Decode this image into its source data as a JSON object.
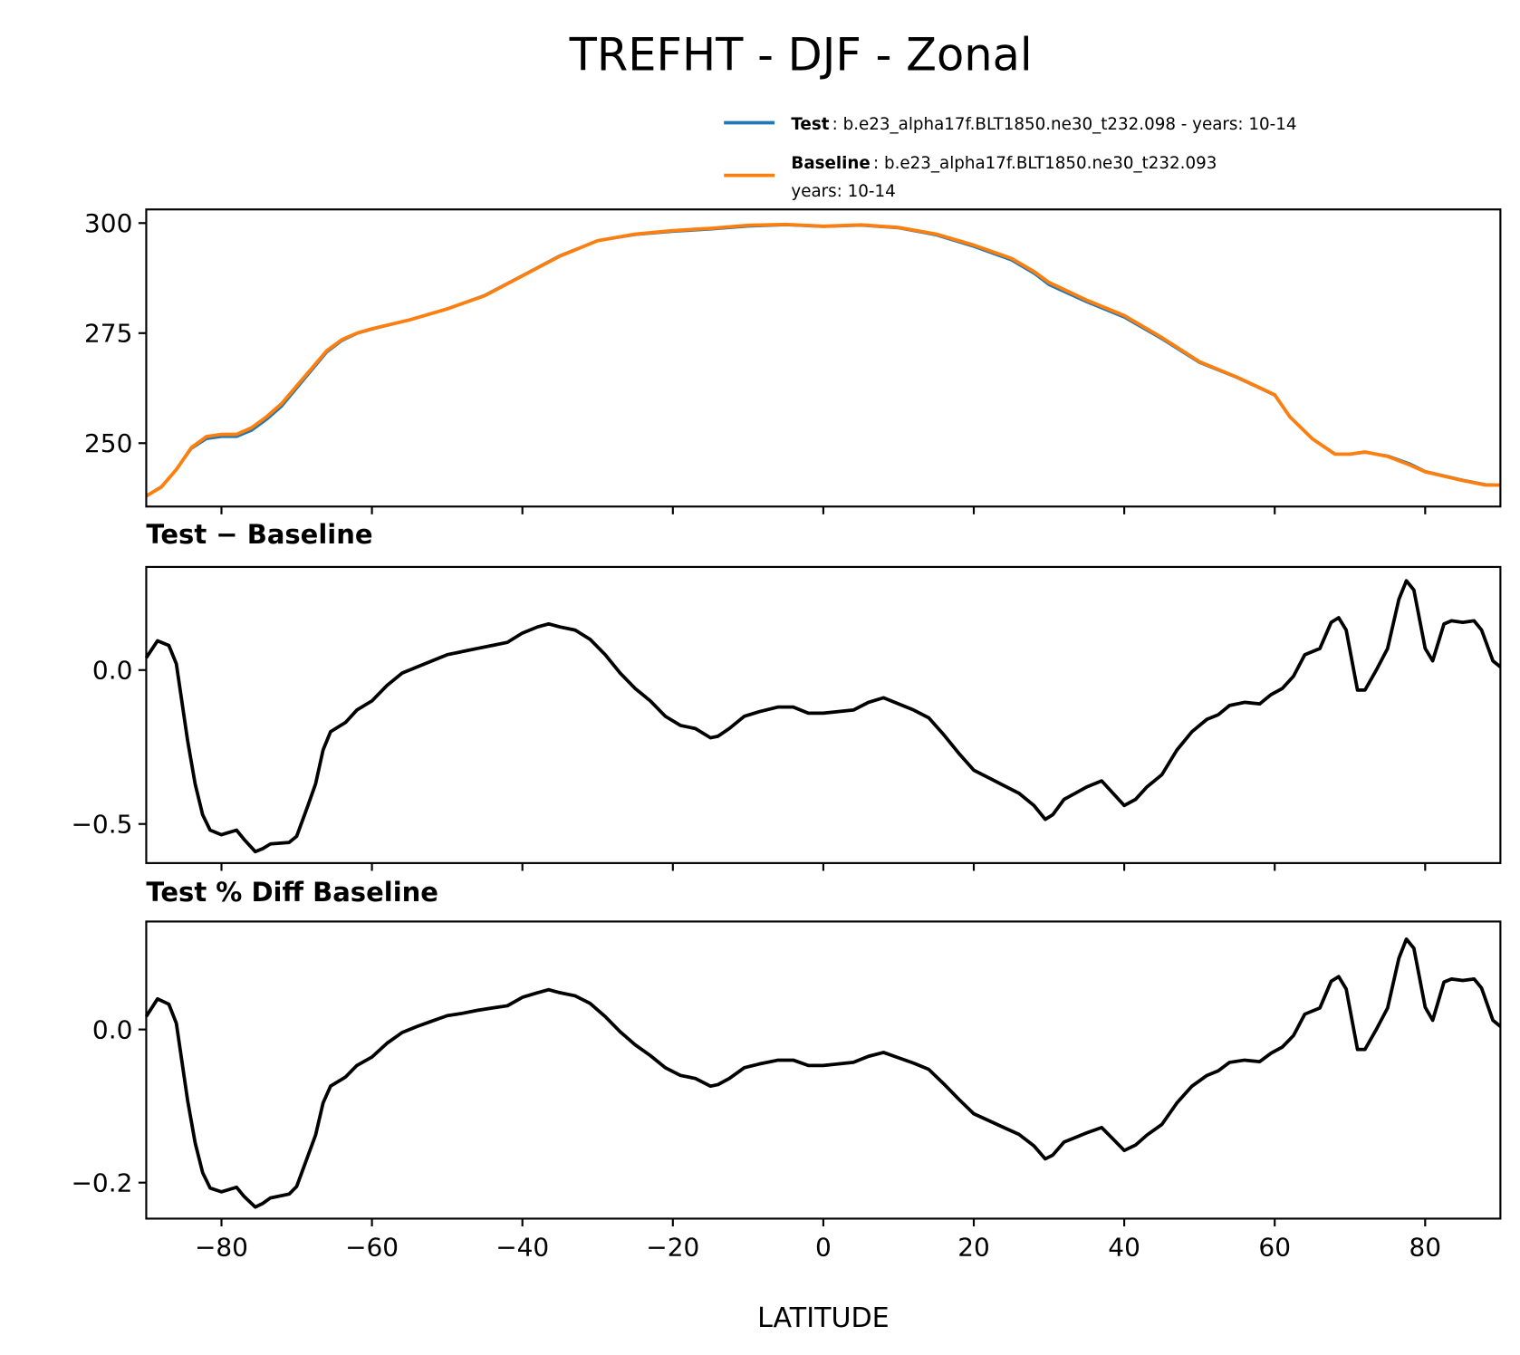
{
  "chart_data": [
    {
      "type": "line",
      "title": "TREFHT - DJF - Zonal",
      "xlabel": "",
      "ylabel": "",
      "xlim": [
        -90,
        90
      ],
      "ylim": [
        235.6,
        303.1
      ],
      "yticks": [
        250,
        275,
        300
      ],
      "ytick_labels": [
        "250",
        "275",
        "300"
      ],
      "legend": {
        "placement": "above-right",
        "entries": [
          {
            "name": "Test",
            "text": ": b.e23_alpha17f.BLT1850.ne30_t232.098 - years: 10-14",
            "color": "#1f77b4"
          },
          {
            "name": "Baseline",
            "text": ": b.e23_alpha17f.BLT1850.ne30_t232.093",
            "text2": "years: 10-14",
            "color": "#ff7f0e"
          }
        ]
      },
      "x": [
        -90,
        -88,
        -86,
        -84,
        -82,
        -80,
        -78,
        -76,
        -74,
        -72,
        -70,
        -68,
        -66,
        -64,
        -62,
        -60,
        -55,
        -50,
        -45,
        -40,
        -35,
        -30,
        -25,
        -20,
        -15,
        -10,
        -5,
        0,
        5,
        10,
        15,
        20,
        25,
        28,
        30,
        35,
        40,
        45,
        50,
        55,
        60,
        62,
        65,
        68,
        70,
        72,
        75,
        78,
        80,
        85,
        88,
        90
      ],
      "series": [
        {
          "name": "Test",
          "color": "#1f77b4",
          "values": [
            238.0,
            240.1,
            244.0,
            248.8,
            251.0,
            251.5,
            251.5,
            252.9,
            255.4,
            258.4,
            262.5,
            266.6,
            270.7,
            273.3,
            274.9,
            275.9,
            278.0,
            280.5,
            283.6,
            288.1,
            292.6,
            296.0,
            297.4,
            298.1,
            298.6,
            299.3,
            299.6,
            299.2,
            299.5,
            298.9,
            297.3,
            294.7,
            291.6,
            288.6,
            286.0,
            282.1,
            278.6,
            273.7,
            268.3,
            264.9,
            260.9,
            256.0,
            251.0,
            247.6,
            247.5,
            247.9,
            247.1,
            245.3,
            243.6,
            241.6,
            240.6,
            240.5
          ]
        },
        {
          "name": "Baseline",
          "color": "#ff7f0e",
          "values": [
            238.0,
            240.0,
            244.0,
            249.0,
            251.5,
            252.0,
            252.0,
            253.5,
            256.0,
            259.0,
            263.0,
            267.0,
            271.0,
            273.5,
            275.0,
            276.0,
            278.0,
            280.5,
            283.5,
            288.0,
            292.5,
            296.0,
            297.5,
            298.3,
            298.8,
            299.5,
            299.7,
            299.3,
            299.6,
            299.0,
            297.5,
            295.0,
            292.0,
            289.0,
            286.5,
            282.5,
            279.0,
            274.0,
            268.5,
            265.0,
            261.0,
            256.0,
            251.0,
            247.5,
            247.5,
            248.0,
            247.0,
            245.0,
            243.5,
            241.5,
            240.5,
            240.5
          ]
        }
      ]
    },
    {
      "type": "line",
      "title": "Test − Baseline",
      "xlim": [
        -90,
        90
      ],
      "ylim": [
        -0.627,
        0.335
      ],
      "yticks": [
        -0.5,
        0.0
      ],
      "ytick_labels": [
        "−0.5",
        "0.0"
      ],
      "x": [
        -90,
        -88.5,
        -87,
        -86,
        -84.5,
        -83.5,
        -82.5,
        -81.5,
        -80,
        -78,
        -77,
        -75.5,
        -74.5,
        -73.5,
        -71,
        -70,
        -68.5,
        -67.5,
        -66.5,
        -65.5,
        -63.5,
        -62,
        -60,
        -58,
        -56,
        -54,
        -52,
        -50,
        -48,
        -46,
        -44,
        -42,
        -40,
        -38,
        -36.5,
        -35,
        -33,
        -31,
        -29,
        -27,
        -25,
        -23,
        -21,
        -19,
        -17,
        -15,
        -14,
        -12.5,
        -10.5,
        -8.5,
        -6,
        -4,
        -2,
        0,
        2,
        4,
        6,
        8,
        10,
        12,
        14,
        16,
        18,
        20,
        22,
        24,
        26,
        28,
        29.5,
        30.5,
        32,
        33.5,
        35,
        37,
        38.5,
        40,
        41.5,
        43,
        45,
        47,
        49,
        51,
        52.5,
        54,
        56,
        58,
        59.5,
        61,
        62.5,
        64,
        66,
        67.5,
        68.5,
        69.5,
        71,
        72,
        73.5,
        75,
        76.5,
        77.5,
        78.5,
        80,
        81,
        82.5,
        83.5,
        85,
        86.5,
        87.5,
        89,
        90
      ],
      "series": [
        {
          "name": "Test - Baseline",
          "color": "#000000",
          "values": [
            0.04,
            0.095,
            0.08,
            0.02,
            -0.23,
            -0.37,
            -0.47,
            -0.52,
            -0.535,
            -0.52,
            -0.55,
            -0.59,
            -0.58,
            -0.565,
            -0.56,
            -0.54,
            -0.44,
            -0.37,
            -0.26,
            -0.2,
            -0.17,
            -0.13,
            -0.1,
            -0.05,
            -0.01,
            0.01,
            0.03,
            0.05,
            0.06,
            0.07,
            0.08,
            0.09,
            0.12,
            0.14,
            0.15,
            0.14,
            0.13,
            0.1,
            0.05,
            -0.01,
            -0.06,
            -0.1,
            -0.15,
            -0.18,
            -0.19,
            -0.22,
            -0.215,
            -0.19,
            -0.15,
            -0.135,
            -0.12,
            -0.12,
            -0.14,
            -0.14,
            -0.135,
            -0.13,
            -0.105,
            -0.09,
            -0.11,
            -0.13,
            -0.155,
            -0.21,
            -0.27,
            -0.325,
            -0.35,
            -0.375,
            -0.4,
            -0.44,
            -0.485,
            -0.47,
            -0.42,
            -0.4,
            -0.38,
            -0.36,
            -0.4,
            -0.44,
            -0.42,
            -0.38,
            -0.34,
            -0.26,
            -0.2,
            -0.16,
            -0.145,
            -0.115,
            -0.105,
            -0.11,
            -0.08,
            -0.06,
            -0.02,
            0.05,
            0.07,
            0.155,
            0.17,
            0.13,
            -0.065,
            -0.065,
            0.0,
            0.07,
            0.23,
            0.29,
            0.26,
            0.07,
            0.03,
            0.15,
            0.16,
            0.155,
            0.16,
            0.13,
            0.03,
            0.01
          ]
        }
      ]
    },
    {
      "type": "line",
      "title": "Test % Diff Baseline",
      "xlabel": "LATITUDE",
      "xlim": [
        -90,
        90
      ],
      "ylim": [
        -0.247,
        0.141
      ],
      "yticks": [
        -0.2,
        0.0
      ],
      "ytick_labels": [
        "−0.2",
        "0.0"
      ],
      "xticks": [
        -80,
        -60,
        -40,
        -20,
        0,
        20,
        40,
        60,
        80
      ],
      "xtick_labels": [
        "−80",
        "−60",
        "−40",
        "−20",
        "0",
        "20",
        "40",
        "60",
        "80"
      ],
      "x": [
        -90,
        -88.5,
        -87,
        -86,
        -84.5,
        -83.5,
        -82.5,
        -81.5,
        -80,
        -78,
        -77,
        -75.5,
        -74.5,
        -73.5,
        -71,
        -70,
        -68.5,
        -67.5,
        -66.5,
        -65.5,
        -63.5,
        -62,
        -60,
        -58,
        -56,
        -54,
        -52,
        -50,
        -48,
        -46,
        -44,
        -42,
        -40,
        -38,
        -36.5,
        -35,
        -33,
        -31,
        -29,
        -27,
        -25,
        -23,
        -21,
        -19,
        -17,
        -15,
        -14,
        -12.5,
        -10.5,
        -8.5,
        -6,
        -4,
        -2,
        0,
        2,
        4,
        6,
        8,
        10,
        12,
        14,
        16,
        18,
        20,
        22,
        24,
        26,
        28,
        29.5,
        30.5,
        32,
        33.5,
        35,
        37,
        38.5,
        40,
        41.5,
        43,
        45,
        47,
        49,
        51,
        52.5,
        54,
        56,
        58,
        59.5,
        61,
        62.5,
        64,
        66,
        67.5,
        68.5,
        69.5,
        71,
        72,
        73.5,
        75,
        76.5,
        77.5,
        78.5,
        80,
        81,
        82.5,
        83.5,
        85,
        86.5,
        87.5,
        89,
        90
      ],
      "series": [
        {
          "name": "Test % Diff Baseline",
          "color": "#000000",
          "values": [
            0.017,
            0.04,
            0.033,
            0.008,
            -0.093,
            -0.148,
            -0.187,
            -0.207,
            -0.212,
            -0.206,
            -0.218,
            -0.232,
            -0.227,
            -0.22,
            -0.215,
            -0.205,
            -0.165,
            -0.138,
            -0.096,
            -0.074,
            -0.062,
            -0.047,
            -0.036,
            -0.018,
            -0.004,
            0.004,
            0.011,
            0.018,
            0.021,
            0.025,
            0.028,
            0.031,
            0.042,
            0.048,
            0.052,
            0.048,
            0.044,
            0.034,
            0.017,
            -0.003,
            -0.02,
            -0.034,
            -0.05,
            -0.06,
            -0.064,
            -0.074,
            -0.072,
            -0.064,
            -0.05,
            -0.045,
            -0.04,
            -0.04,
            -0.047,
            -0.047,
            -0.045,
            -0.043,
            -0.035,
            -0.03,
            -0.037,
            -0.044,
            -0.052,
            -0.071,
            -0.091,
            -0.11,
            -0.119,
            -0.128,
            -0.137,
            -0.152,
            -0.169,
            -0.164,
            -0.147,
            -0.141,
            -0.135,
            -0.128,
            -0.143,
            -0.158,
            -0.151,
            -0.138,
            -0.124,
            -0.096,
            -0.074,
            -0.06,
            -0.054,
            -0.043,
            -0.04,
            -0.042,
            -0.031,
            -0.023,
            -0.008,
            0.02,
            0.028,
            0.063,
            0.069,
            0.053,
            -0.026,
            -0.026,
            0.0,
            0.028,
            0.093,
            0.118,
            0.106,
            0.029,
            0.012,
            0.062,
            0.066,
            0.064,
            0.066,
            0.054,
            0.012,
            0.004
          ]
        }
      ]
    }
  ]
}
